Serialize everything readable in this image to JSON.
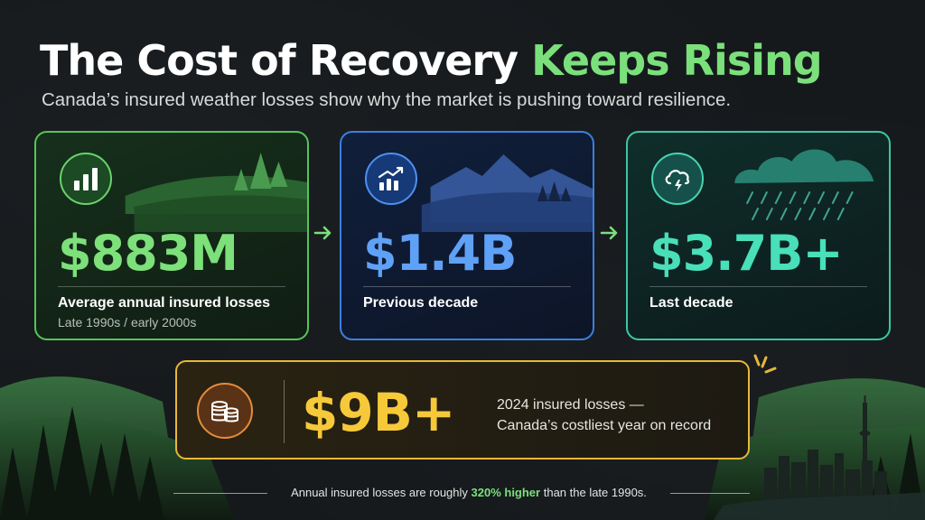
{
  "header": {
    "title_main": "The Cost of Recovery",
    "title_accent": "Keeps Rising",
    "subtitle": "Canada’s insured weather losses show why the market is pushing toward resilience."
  },
  "cards": [
    {
      "value": "$883M",
      "label": "Average annual insured losses",
      "sub": "Late 1990s / early 2000s",
      "icon": "bar-chart-icon",
      "color": "#7de07a"
    },
    {
      "value": "$1.4B",
      "label": "Previous decade",
      "sub": "",
      "icon": "trending-up-icon",
      "color": "#5fa1f7"
    },
    {
      "value": "$3.7B+",
      "label": "Last decade",
      "sub": "",
      "icon": "storm-cloud-icon",
      "color": "#48dfb9"
    }
  ],
  "record": {
    "value": "$9B+",
    "line1": "2024 insured losses —",
    "line2": "Canada’s costliest year on record",
    "icon": "coins-icon",
    "color": "#f6c93a"
  },
  "footer": {
    "prefix": "Annual insured losses are roughly ",
    "highlight": "320% higher",
    "suffix": " than the late 1990s."
  },
  "colors": {
    "background": "#161a1d",
    "green": "#7be07b",
    "blue": "#3c7fe0",
    "teal": "#3cc7a2",
    "gold": "#e8b73a"
  }
}
